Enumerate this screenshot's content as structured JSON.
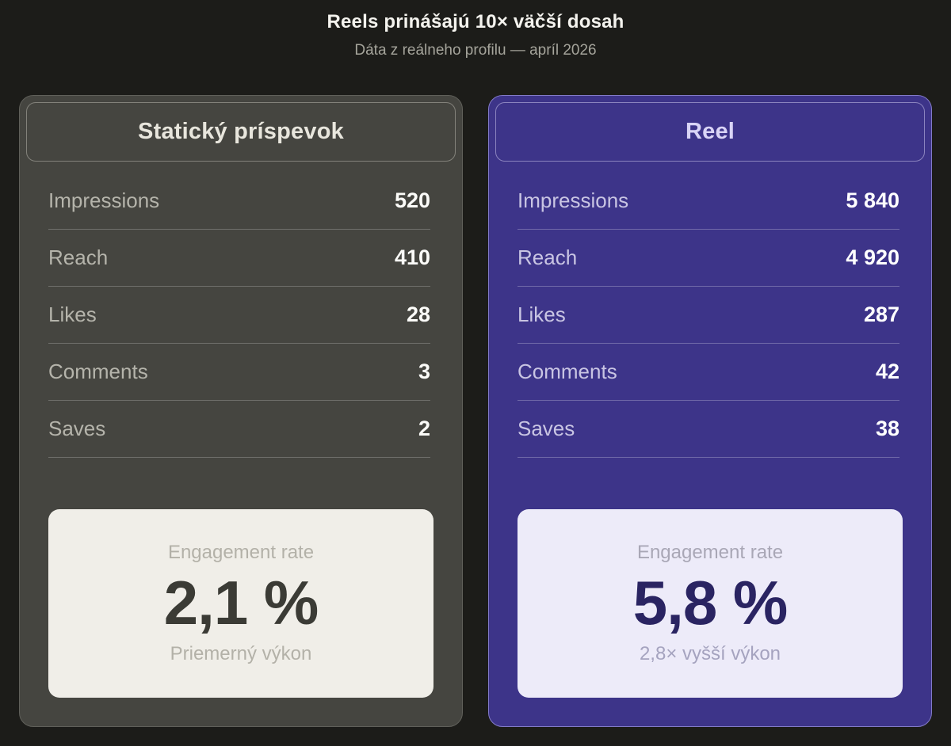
{
  "header": {
    "title": "Reels prinášajú 10× väčší dosah",
    "subtitle": "Dáta z reálneho profilu — apríl 2026"
  },
  "cards": [
    {
      "title": "Statický príspevok",
      "rows": [
        {
          "label": "Impressions",
          "value": "520"
        },
        {
          "label": "Reach",
          "value": "410"
        },
        {
          "label": "Likes",
          "value": "28"
        },
        {
          "label": "Comments",
          "value": "3"
        },
        {
          "label": "Saves",
          "value": "2"
        }
      ],
      "engagement": {
        "label": "Engagement rate",
        "value": "2,1 %",
        "caption": "Priemerný výkon"
      }
    },
    {
      "title": "Reel",
      "rows": [
        {
          "label": "Impressions",
          "value": "5 840"
        },
        {
          "label": "Reach",
          "value": "4 920"
        },
        {
          "label": "Likes",
          "value": "287"
        },
        {
          "label": "Comments",
          "value": "42"
        },
        {
          "label": "Saves",
          "value": "38"
        }
      ],
      "engagement": {
        "label": "Engagement rate",
        "value": "5,8 %",
        "caption": "2,8× vyšší výkon"
      }
    }
  ],
  "colors": {
    "page_background": "#1c1c19",
    "static_card_background": "#454540",
    "reel_card_background": "#3d3489",
    "reel_card_border": "#837bc8",
    "static_engagement_background": "#f0eee8",
    "reel_engagement_background": "#edebf9",
    "static_engagement_value": "#3b3b35",
    "reel_engagement_value": "#2a2462",
    "title_text": "#f4f3ee",
    "subtitle_text": "#a5a49b"
  },
  "chart_data": {
    "type": "table",
    "title": "Reels prinášajú 10× väčší dosah",
    "subtitle": "Dáta z reálneho profilu — apríl 2026",
    "categories": [
      "Impressions",
      "Reach",
      "Likes",
      "Comments",
      "Saves"
    ],
    "series": [
      {
        "name": "Statický príspevok",
        "values": [
          520,
          410,
          28,
          3,
          2
        ],
        "engagement_rate_pct": 2.1,
        "note": "Priemerný výkon"
      },
      {
        "name": "Reel",
        "values": [
          5840,
          4920,
          287,
          42,
          38
        ],
        "engagement_rate_pct": 5.8,
        "note": "2,8× vyšší výkon"
      }
    ]
  }
}
